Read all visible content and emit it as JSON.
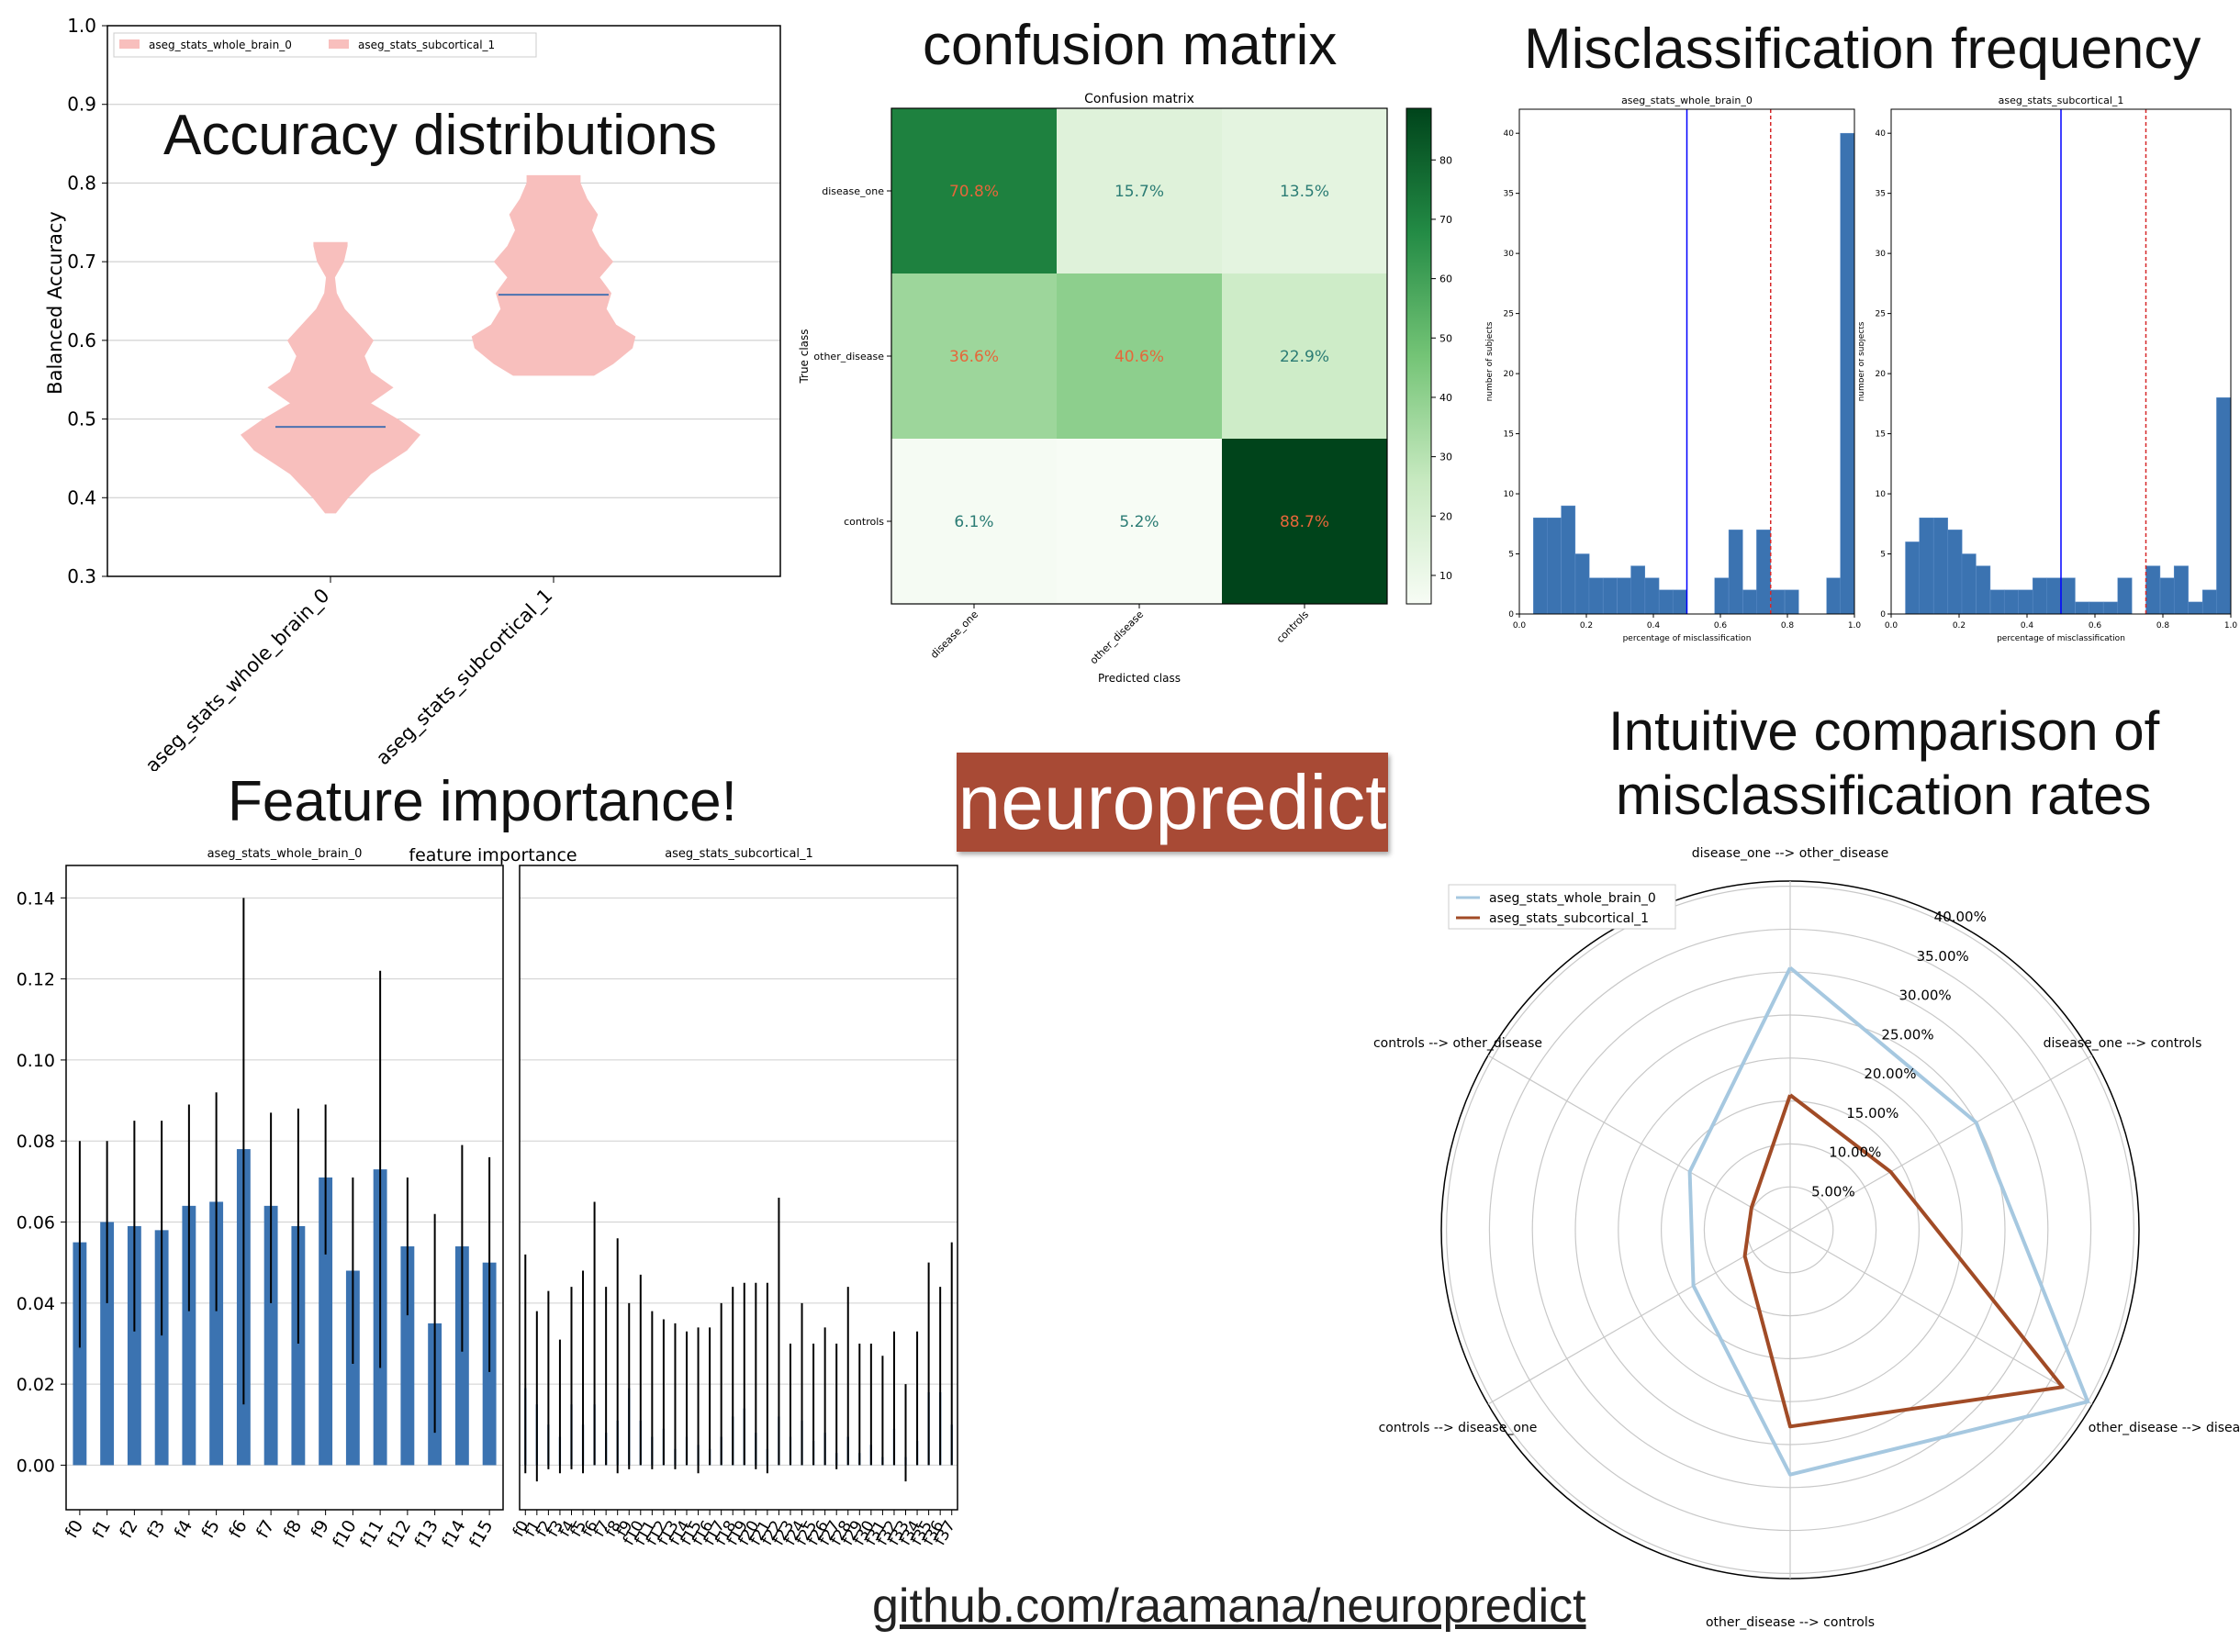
{
  "titles": {
    "accuracy": "Accuracy distributions",
    "confusion": "confusion matrix",
    "misclass": "Misclassification frequency",
    "importance": "Feature importance!",
    "comparison_line1": "Intuitive comparison of",
    "comparison_line2": "misclassification rates"
  },
  "brand": "neuropredict",
  "link": "github.com/raamana/neuropredict",
  "colors": {
    "violin": "#f8bfbd",
    "median": "#4c72b0",
    "bar": "#3b73b1",
    "whole_brain_line": "#a6c8e0",
    "subcortical_line": "#a14b26",
    "brand": "#a84a35",
    "vline_blue": "#0000ff",
    "vline_red": "#d62728"
  },
  "chart_data": [
    {
      "type": "violin",
      "ylabel": "Balanced Accuracy",
      "ylim": [
        0.3,
        1.0
      ],
      "yticks": [
        "0.3",
        "0.4",
        "0.5",
        "0.6",
        "0.7",
        "0.8",
        "0.9",
        "1.0"
      ],
      "legend": [
        "aseg_stats_whole_brain_0",
        "aseg_stats_subcortical_1"
      ],
      "legend_position": "top-left",
      "categories": [
        "aseg_stats_whole_brain_0",
        "aseg_stats_subcortical_1"
      ],
      "series": [
        {
          "name": "aseg_stats_whole_brain_0",
          "min": 0.38,
          "max": 0.725,
          "median": 0.49,
          "profile": [
            [
              0.38,
              0.06
            ],
            [
              0.4,
              0.2
            ],
            [
              0.43,
              0.45
            ],
            [
              0.46,
              0.85
            ],
            [
              0.48,
              1.0
            ],
            [
              0.5,
              0.75
            ],
            [
              0.52,
              0.45
            ],
            [
              0.54,
              0.7
            ],
            [
              0.56,
              0.45
            ],
            [
              0.58,
              0.38
            ],
            [
              0.6,
              0.48
            ],
            [
              0.62,
              0.32
            ],
            [
              0.64,
              0.16
            ],
            [
              0.66,
              0.07
            ],
            [
              0.68,
              0.05
            ],
            [
              0.7,
              0.15
            ],
            [
              0.72,
              0.19
            ],
            [
              0.725,
              0.19
            ]
          ]
        },
        {
          "name": "aseg_stats_subcortical_1",
          "min": 0.555,
          "max": 0.81,
          "median": 0.658,
          "profile": [
            [
              0.555,
              0.42
            ],
            [
              0.57,
              0.62
            ],
            [
              0.59,
              0.82
            ],
            [
              0.605,
              0.85
            ],
            [
              0.62,
              0.65
            ],
            [
              0.64,
              0.55
            ],
            [
              0.66,
              0.6
            ],
            [
              0.68,
              0.48
            ],
            [
              0.7,
              0.62
            ],
            [
              0.72,
              0.48
            ],
            [
              0.74,
              0.4
            ],
            [
              0.76,
              0.46
            ],
            [
              0.78,
              0.35
            ],
            [
              0.8,
              0.28
            ],
            [
              0.81,
              0.28
            ]
          ]
        }
      ]
    },
    {
      "type": "heatmap",
      "title": "Confusion matrix",
      "xlabel": "Predicted class",
      "ylabel": "True class",
      "classes": [
        "disease_one",
        "other_disease",
        "controls"
      ],
      "values": [
        [
          70.8,
          15.7,
          13.5
        ],
        [
          36.6,
          40.6,
          22.9
        ],
        [
          6.1,
          5.2,
          88.7
        ]
      ],
      "labels": [
        [
          "70.8%",
          "15.7%",
          "13.5%"
        ],
        [
          "36.6%",
          "40.6%",
          "22.9%"
        ],
        [
          "6.1%",
          "5.2%",
          "88.7%"
        ]
      ],
      "colorbar_ticks": [
        "10",
        "20",
        "30",
        "40",
        "50",
        "60",
        "70",
        "80"
      ],
      "colorbar_range": [
        5.2,
        88.7
      ]
    },
    {
      "type": "bar",
      "title": "aseg_stats_whole_brain_0",
      "xlabel": "percentage of misclassification",
      "ylabel": "number of subjects",
      "xlim": [
        0.0,
        1.0
      ],
      "ylim": [
        0,
        42
      ],
      "xticks": [
        "0.0",
        "0.2",
        "0.4",
        "0.6",
        "0.8",
        "1.0"
      ],
      "yticks": [
        "0",
        "5",
        "10",
        "15",
        "20",
        "25",
        "30",
        "35",
        "40"
      ],
      "bin_width": 0.0417,
      "bin_starts": [
        0.042,
        0.083,
        0.125,
        0.167,
        0.208,
        0.25,
        0.292,
        0.333,
        0.375,
        0.417,
        0.458,
        0.5,
        0.542,
        0.583,
        0.625,
        0.667,
        0.708,
        0.75,
        0.792,
        0.833,
        0.875,
        0.917,
        0.958
      ],
      "counts": [
        8,
        8,
        9,
        5,
        3,
        3,
        3,
        4,
        3,
        2,
        2,
        0,
        0,
        3,
        7,
        2,
        7,
        2,
        2,
        0,
        0,
        3,
        40
      ],
      "vlines": [
        0.5,
        0.75
      ]
    },
    {
      "type": "bar",
      "title": "aseg_stats_subcortical_1",
      "xlabel": "percentage of misclassification",
      "ylabel": "number of subjects",
      "xlim": [
        0.0,
        1.0
      ],
      "ylim": [
        0,
        42
      ],
      "xticks": [
        "0.0",
        "0.2",
        "0.4",
        "0.6",
        "0.8",
        "1.0"
      ],
      "yticks": [
        "0",
        "5",
        "10",
        "15",
        "20",
        "25",
        "30",
        "35",
        "40"
      ],
      "bin_width": 0.0417,
      "bin_starts": [
        0.042,
        0.083,
        0.125,
        0.167,
        0.208,
        0.25,
        0.292,
        0.333,
        0.375,
        0.417,
        0.458,
        0.5,
        0.542,
        0.583,
        0.625,
        0.667,
        0.708,
        0.75,
        0.792,
        0.833,
        0.875,
        0.917,
        0.958
      ],
      "counts": [
        6,
        8,
        8,
        7,
        5,
        4,
        2,
        2,
        2,
        3,
        3,
        3,
        1,
        1,
        1,
        3,
        0,
        4,
        3,
        4,
        1,
        2,
        18
      ],
      "vlines": [
        0.5,
        0.75
      ]
    },
    {
      "type": "bar",
      "title": "aseg_stats_whole_brain_0",
      "suptitle": "feature importance",
      "ylim": [
        -0.011,
        0.148
      ],
      "yticks": [
        "0.00",
        "0.02",
        "0.04",
        "0.06",
        "0.08",
        "0.10",
        "0.12",
        "0.14"
      ],
      "categories": [
        "f0",
        "f1",
        "f2",
        "f3",
        "f4",
        "f5",
        "f6",
        "f7",
        "f8",
        "f9",
        "f10",
        "f11",
        "f12",
        "f13",
        "f14",
        "f15"
      ],
      "values": [
        0.055,
        0.06,
        0.059,
        0.058,
        0.064,
        0.065,
        0.078,
        0.064,
        0.059,
        0.071,
        0.048,
        0.073,
        0.054,
        0.035,
        0.054,
        0.05
      ],
      "err_low": [
        0.029,
        0.04,
        0.033,
        0.032,
        0.038,
        0.038,
        0.015,
        0.04,
        0.03,
        0.052,
        0.025,
        0.024,
        0.037,
        0.008,
        0.028,
        0.023
      ],
      "err_high": [
        0.08,
        0.08,
        0.085,
        0.085,
        0.089,
        0.092,
        0.14,
        0.087,
        0.088,
        0.089,
        0.071,
        0.122,
        0.071,
        0.062,
        0.079,
        0.076
      ]
    },
    {
      "type": "bar",
      "title": "aseg_stats_subcortical_1",
      "ylim": [
        -0.011,
        0.148
      ],
      "categories": [
        "f0",
        "f1",
        "f2",
        "f3",
        "f4",
        "f5",
        "f6",
        "f7",
        "f8",
        "f9",
        "f10",
        "f11",
        "f12",
        "f13",
        "f14",
        "f15",
        "f16",
        "f17",
        "f18",
        "f19",
        "f20",
        "f21",
        "f22",
        "f23",
        "f24",
        "f25",
        "f26",
        "f27",
        "f28",
        "f29",
        "f30",
        "f31",
        "f32",
        "f33",
        "f34",
        "f35",
        "f36",
        "f37"
      ],
      "values": [
        0.019,
        0.015,
        0.01,
        0.007,
        0.015,
        0.01,
        0.015,
        0.008,
        0.011,
        0.019,
        0.011,
        0.007,
        0.009,
        0.004,
        0.007,
        0.005,
        0.004,
        0.007,
        0.012,
        0.014,
        0.008,
        0.004,
        0.012,
        0.007,
        0.011,
        0.006,
        0.008,
        0.003,
        0.007,
        0.003,
        0.005,
        0.002,
        0.009,
        0.002,
        0.006,
        0.018,
        0.018,
        0.01
      ],
      "err_low": [
        -0.002,
        -0.004,
        -0.001,
        -0.002,
        -0.001,
        -0.002,
        0.0,
        0.0,
        -0.002,
        -0.001,
        0.0,
        -0.001,
        0.0,
        -0.001,
        0.0,
        -0.002,
        0.0,
        0.0,
        0.0,
        0.0,
        -0.001,
        -0.002,
        0.0,
        0.0,
        0.0,
        0.0,
        0.0,
        -0.001,
        0.0,
        0.0,
        0.0,
        0.0,
        0.0,
        -0.004,
        0.0,
        0.0,
        0.0,
        0.0
      ],
      "err_high": [
        0.052,
        0.038,
        0.043,
        0.031,
        0.044,
        0.048,
        0.065,
        0.044,
        0.056,
        0.04,
        0.047,
        0.038,
        0.036,
        0.035,
        0.033,
        0.034,
        0.034,
        0.04,
        0.044,
        0.045,
        0.045,
        0.045,
        0.066,
        0.03,
        0.04,
        0.03,
        0.034,
        0.03,
        0.044,
        0.03,
        0.03,
        0.027,
        0.033,
        0.02,
        0.033,
        0.05,
        0.044,
        0.055
      ]
    },
    {
      "type": "radar",
      "axes": [
        "disease_one --> other_disease",
        "disease_one --> controls",
        "other_disease --> disease_one",
        "other_disease --> controls",
        "controls --> disease_one",
        "controls --> other_disease"
      ],
      "rticks": [
        "5.00%",
        "10.00%",
        "15.00%",
        "20.00%",
        "25.00%",
        "30.00%",
        "35.00%",
        "40.00%"
      ],
      "rmax": 40.6,
      "legend_position": "top-left",
      "series": [
        {
          "name": "aseg_stats_whole_brain_0",
          "values": [
            30.5,
            25.0,
            40.0,
            28.5,
            13.0,
            13.5
          ]
        },
        {
          "name": "aseg_stats_subcortical_1",
          "values": [
            15.7,
            13.5,
            36.6,
            22.9,
            6.1,
            5.2
          ]
        }
      ]
    }
  ]
}
